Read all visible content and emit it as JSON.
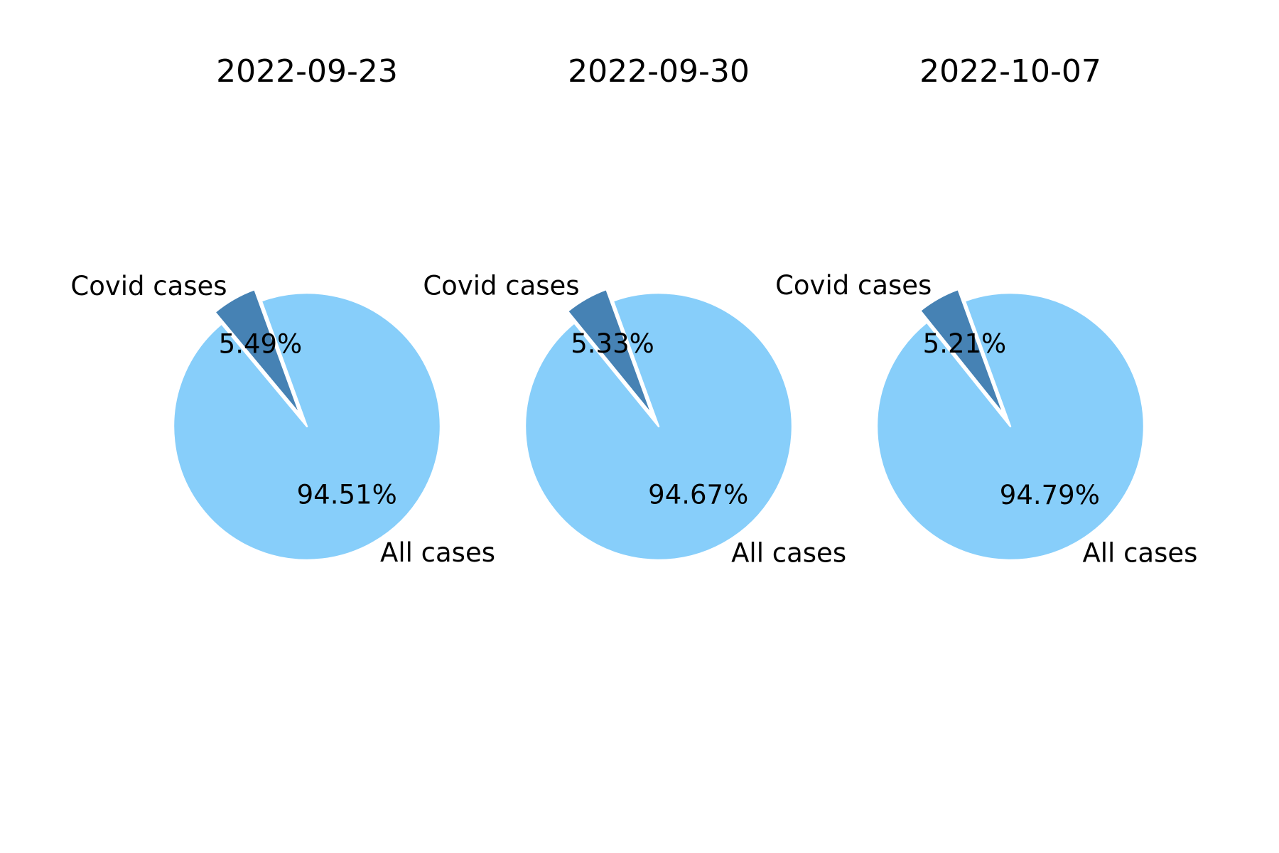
{
  "chart_data": [
    {
      "type": "pie",
      "title": "2022-09-23",
      "slices": [
        {
          "label": "Covid cases",
          "value": 5.49,
          "pct_text": "5.49%",
          "explode": true
        },
        {
          "label": "All cases",
          "value": 94.51,
          "pct_text": "94.51%",
          "explode": false
        }
      ]
    },
    {
      "type": "pie",
      "title": "2022-09-30",
      "slices": [
        {
          "label": "Covid cases",
          "value": 5.33,
          "pct_text": "5.33%",
          "explode": true
        },
        {
          "label": "All cases",
          "value": 94.67,
          "pct_text": "94.67%",
          "explode": false
        }
      ]
    },
    {
      "type": "pie",
      "title": "2022-10-07",
      "slices": [
        {
          "label": "Covid cases",
          "value": 5.21,
          "pct_text": "5.21%",
          "explode": true
        },
        {
          "label": "All cases",
          "value": 94.79,
          "pct_text": "94.79%",
          "explode": false
        }
      ]
    }
  ],
  "colors": {
    "covid": "#4682b4",
    "all": "#87cefa",
    "edge": "#ffffff"
  }
}
